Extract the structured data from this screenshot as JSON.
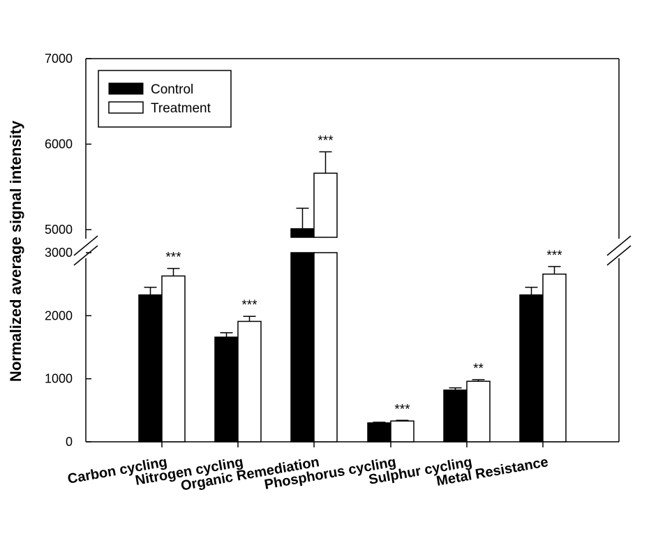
{
  "chart_data": {
    "type": "bar",
    "title": "",
    "xlabel": "",
    "ylabel": "Normalized average signal intensity",
    "categories": [
      "Carbon cycling",
      "Nitrogen cycling",
      "Organic Remediation",
      "Phosphorus cycling",
      "Sulphur cycling",
      "Metal Resistance"
    ],
    "series": [
      {
        "name": "Control",
        "color": "#000000",
        "values": [
          2330,
          1660,
          5010,
          300,
          820,
          2330
        ],
        "errors": [
          120,
          70,
          240,
          10,
          35,
          120
        ]
      },
      {
        "name": "Treatment",
        "color": "#ffffff",
        "values": [
          2630,
          1910,
          5660,
          330,
          960,
          2660
        ],
        "errors": [
          120,
          80,
          250,
          10,
          25,
          120
        ]
      }
    ],
    "significance": [
      "***",
      "***",
      "***",
      "***",
      "**",
      "***"
    ],
    "y_axis_break": {
      "lower_range": [
        0,
        3000
      ],
      "upper_range": [
        5000,
        7000
      ]
    },
    "lower_ticks": [
      "0",
      "1000",
      "2000",
      "3000"
    ],
    "upper_ticks": [
      "5000",
      "6000",
      "7000"
    ],
    "legend_position": "top-left",
    "grid": false
  }
}
